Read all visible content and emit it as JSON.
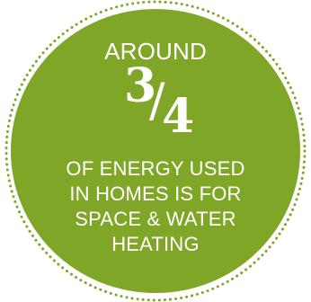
{
  "badge": {
    "fill_color": "#80a628",
    "dot_color": "#80a628",
    "headline_prefix": "AROUND",
    "fraction": {
      "numerator": "3",
      "slash": "/",
      "denominator": "4"
    },
    "lines": [
      "OF ENERGY USED",
      "IN HOMES IS FOR",
      "SPACE & WATER",
      "HEATING"
    ]
  }
}
